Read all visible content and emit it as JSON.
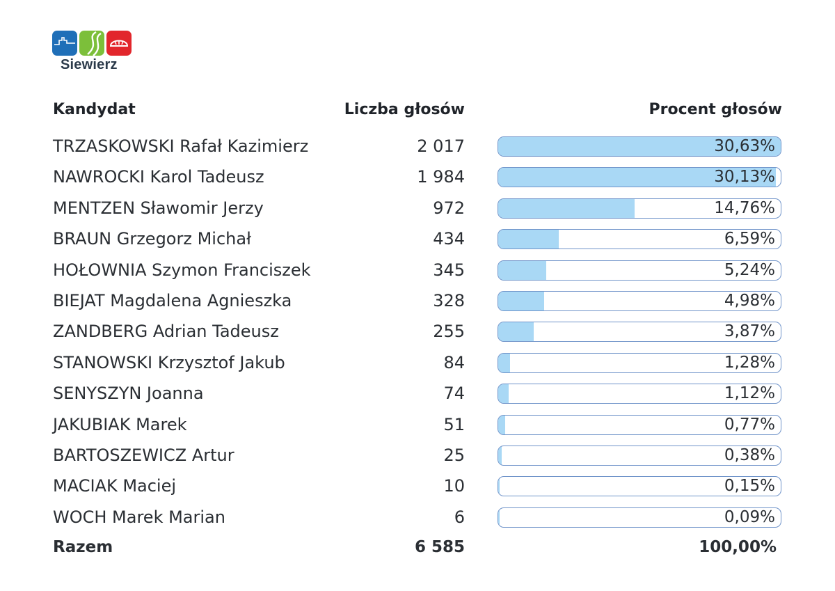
{
  "brand": {
    "name": "Siewierz",
    "colors": {
      "blue": "#1f6fb8",
      "green": "#7cbf3a",
      "red": "#e2262c"
    }
  },
  "chart_data": {
    "type": "table",
    "headers": [
      "Kandydat",
      "Liczba głosów",
      "Procent głosów"
    ],
    "rows": [
      {
        "name": "TRZASKOWSKI Rafał Kazimierz",
        "votes": "2 017",
        "percent_label": "30,63%",
        "percent": 30.63
      },
      {
        "name": "NAWROCKI Karol Tadeusz",
        "votes": "1 984",
        "percent_label": "30,13%",
        "percent": 30.13
      },
      {
        "name": "MENTZEN Sławomir Jerzy",
        "votes": "972",
        "percent_label": "14,76%",
        "percent": 14.76
      },
      {
        "name": "BRAUN Grzegorz Michał",
        "votes": "434",
        "percent_label": "6,59%",
        "percent": 6.59
      },
      {
        "name": "HOŁOWNIA Szymon Franciszek",
        "votes": "345",
        "percent_label": "5,24%",
        "percent": 5.24
      },
      {
        "name": "BIEJAT Magdalena Agnieszka",
        "votes": "328",
        "percent_label": "4,98%",
        "percent": 4.98
      },
      {
        "name": "ZANDBERG Adrian Tadeusz",
        "votes": "255",
        "percent_label": "3,87%",
        "percent": 3.87
      },
      {
        "name": "STANOWSKI Krzysztof Jakub",
        "votes": "84",
        "percent_label": "1,28%",
        "percent": 1.28
      },
      {
        "name": "SENYSZYN Joanna",
        "votes": "74",
        "percent_label": "1,12%",
        "percent": 1.12
      },
      {
        "name": "JAKUBIAK Marek",
        "votes": "51",
        "percent_label": "0,77%",
        "percent": 0.77
      },
      {
        "name": "BARTOSZEWICZ Artur",
        "votes": "25",
        "percent_label": "0,38%",
        "percent": 0.38
      },
      {
        "name": "MACIAK Maciej",
        "votes": "10",
        "percent_label": "0,15%",
        "percent": 0.15
      },
      {
        "name": "WOCH Marek Marian",
        "votes": "6",
        "percent_label": "0,09%",
        "percent": 0.09
      }
    ],
    "bar_scale_max_percent": 30.63,
    "total": {
      "label": "Razem",
      "votes": "6 585",
      "percent_label": "100,00%"
    },
    "bar_colors": {
      "fill": "#a9d8f5",
      "border": "#6f93c9"
    }
  }
}
